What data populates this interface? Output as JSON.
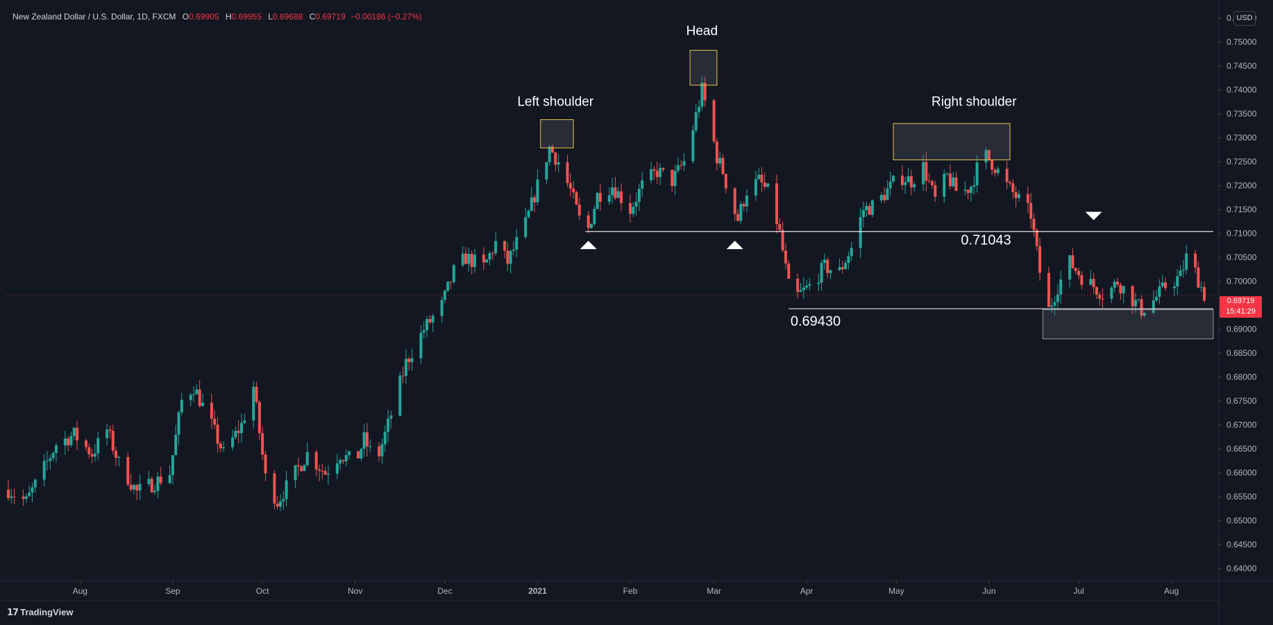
{
  "legend": {
    "symbol": "New Zealand Dollar / U.S. Dollar, 1D, FXCM",
    "open_label": "O",
    "open": "0.69905",
    "high_label": "H",
    "high": "0.69955",
    "low_label": "L",
    "low": "0.69688",
    "close_label": "C",
    "close": "0.69719",
    "change": "−0.00186 (−0.27%)"
  },
  "currency_button": "USD",
  "last_price": {
    "value": "0.69719",
    "countdown": "15:41:29"
  },
  "brand": "TradingView",
  "colors": {
    "background": "#131722",
    "up": "#26a69a",
    "down": "#ef5350",
    "axis_text": "#b2b5be",
    "highlight_border": "#e8c547"
  },
  "chart_data": {
    "type": "candlestick",
    "ylim": [
      0.6375,
      0.7588
    ],
    "y_ticks": [
      "0.75500",
      "0.75000",
      "0.74500",
      "0.74000",
      "0.73500",
      "0.73000",
      "0.72500",
      "0.72000",
      "0.71500",
      "0.71000",
      "0.70500",
      "0.70000",
      "0.69500",
      "0.69000",
      "0.68500",
      "0.68000",
      "0.67500",
      "0.67000",
      "0.66500",
      "0.66000",
      "0.65500",
      "0.65000",
      "0.64500",
      "0.64000"
    ],
    "x_ticks": [
      {
        "label": "Aug",
        "date": "2020-08-01"
      },
      {
        "label": "Sep",
        "date": "2020-09-01"
      },
      {
        "label": "Oct",
        "date": "2020-10-01"
      },
      {
        "label": "Nov",
        "date": "2020-11-01"
      },
      {
        "label": "Dec",
        "date": "2020-12-01"
      },
      {
        "label": "2021",
        "date": "2021-01-01"
      },
      {
        "label": "Feb",
        "date": "2021-02-01"
      },
      {
        "label": "Mar",
        "date": "2021-03-01"
      },
      {
        "label": "Apr",
        "date": "2021-04-01"
      },
      {
        "label": "May",
        "date": "2021-05-01"
      },
      {
        "label": "Jun",
        "date": "2021-06-01"
      },
      {
        "label": "Jul",
        "date": "2021-07-01"
      },
      {
        "label": "Aug",
        "date": "2021-08-01"
      }
    ],
    "date_range": [
      "2020-07-08",
      "2021-08-12"
    ],
    "close_path": [
      {
        "date": "2020-07-08",
        "close": 0.6565
      },
      {
        "date": "2020-07-14",
        "close": 0.654
      },
      {
        "date": "2020-07-20",
        "close": 0.661
      },
      {
        "date": "2020-07-24",
        "close": 0.666
      },
      {
        "date": "2020-07-30",
        "close": 0.668
      },
      {
        "date": "2020-08-05",
        "close": 0.664
      },
      {
        "date": "2020-08-10",
        "close": 0.669
      },
      {
        "date": "2020-08-14",
        "close": 0.662
      },
      {
        "date": "2020-08-20",
        "close": 0.656
      },
      {
        "date": "2020-08-26",
        "close": 0.658
      },
      {
        "date": "2020-08-31",
        "close": 0.66
      },
      {
        "date": "2020-09-04",
        "close": 0.675
      },
      {
        "date": "2020-09-08",
        "close": 0.678
      },
      {
        "date": "2020-09-14",
        "close": 0.67
      },
      {
        "date": "2020-09-18",
        "close": 0.664
      },
      {
        "date": "2020-09-24",
        "close": 0.67
      },
      {
        "date": "2020-09-28",
        "close": 0.678
      },
      {
        "date": "2020-10-02",
        "close": 0.659
      },
      {
        "date": "2020-10-06",
        "close": 0.654
      },
      {
        "date": "2020-10-12",
        "close": 0.66
      },
      {
        "date": "2020-10-16",
        "close": 0.664
      },
      {
        "date": "2020-10-22",
        "close": 0.66
      },
      {
        "date": "2020-10-27",
        "close": 0.664
      },
      {
        "date": "2020-11-01",
        "close": 0.662
      },
      {
        "date": "2020-11-04",
        "close": 0.667
      },
      {
        "date": "2020-11-08",
        "close": 0.662
      },
      {
        "date": "2020-11-12",
        "close": 0.67
      },
      {
        "date": "2020-11-18",
        "close": 0.683
      },
      {
        "date": "2020-11-24",
        "close": 0.69
      },
      {
        "date": "2020-11-30",
        "close": 0.695
      },
      {
        "date": "2020-12-04",
        "close": 0.702
      },
      {
        "date": "2020-12-08",
        "close": 0.705
      },
      {
        "date": "2020-12-14",
        "close": 0.703
      },
      {
        "date": "2020-12-18",
        "close": 0.708
      },
      {
        "date": "2020-12-22",
        "close": 0.704
      },
      {
        "date": "2020-12-28",
        "close": 0.712
      },
      {
        "date": "2021-01-01",
        "close": 0.72
      },
      {
        "date": "2021-01-05",
        "close": 0.728
      },
      {
        "date": "2021-01-08",
        "close": 0.725
      },
      {
        "date": "2021-01-12",
        "close": 0.719
      },
      {
        "date": "2021-01-15",
        "close": 0.713
      },
      {
        "date": "2021-01-18",
        "close": 0.711
      },
      {
        "date": "2021-01-21",
        "close": 0.718
      },
      {
        "date": "2021-01-26",
        "close": 0.72
      },
      {
        "date": "2021-02-01",
        "close": 0.715
      },
      {
        "date": "2021-02-05",
        "close": 0.72
      },
      {
        "date": "2021-02-10",
        "close": 0.723
      },
      {
        "date": "2021-02-15",
        "close": 0.721
      },
      {
        "date": "2021-02-19",
        "close": 0.725
      },
      {
        "date": "2021-02-22",
        "close": 0.732
      },
      {
        "date": "2021-02-25",
        "close": 0.74
      },
      {
        "date": "2021-02-27",
        "close": 0.735
      },
      {
        "date": "2021-03-02",
        "close": 0.726
      },
      {
        "date": "2021-03-04",
        "close": 0.723
      },
      {
        "date": "2021-03-07",
        "close": 0.716
      },
      {
        "date": "2021-03-09",
        "close": 0.713
      },
      {
        "date": "2021-03-12",
        "close": 0.719
      },
      {
        "date": "2021-03-16",
        "close": 0.721
      },
      {
        "date": "2021-03-20",
        "close": 0.718
      },
      {
        "date": "2021-03-23",
        "close": 0.71
      },
      {
        "date": "2021-03-26",
        "close": 0.699
      },
      {
        "date": "2021-03-29",
        "close": 0.697
      },
      {
        "date": "2021-04-02",
        "close": 0.699
      },
      {
        "date": "2021-04-07",
        "close": 0.703
      },
      {
        "date": "2021-04-12",
        "close": 0.702
      },
      {
        "date": "2021-04-16",
        "close": 0.707
      },
      {
        "date": "2021-04-20",
        "close": 0.715
      },
      {
        "date": "2021-04-24",
        "close": 0.716
      },
      {
        "date": "2021-04-28",
        "close": 0.719
      },
      {
        "date": "2021-05-02",
        "close": 0.722
      },
      {
        "date": "2021-05-06",
        "close": 0.721
      },
      {
        "date": "2021-05-10",
        "close": 0.724
      },
      {
        "date": "2021-05-14",
        "close": 0.717
      },
      {
        "date": "2021-05-18",
        "close": 0.722
      },
      {
        "date": "2021-05-22",
        "close": 0.718
      },
      {
        "date": "2021-05-26",
        "close": 0.72
      },
      {
        "date": "2021-05-30",
        "close": 0.727
      },
      {
        "date": "2021-06-03",
        "close": 0.724
      },
      {
        "date": "2021-06-07",
        "close": 0.72
      },
      {
        "date": "2021-06-11",
        "close": 0.717
      },
      {
        "date": "2021-06-15",
        "close": 0.714
      },
      {
        "date": "2021-06-18",
        "close": 0.702
      },
      {
        "date": "2021-06-21",
        "close": 0.694
      },
      {
        "date": "2021-06-24",
        "close": 0.699
      },
      {
        "date": "2021-06-28",
        "close": 0.704
      },
      {
        "date": "2021-07-02",
        "close": 0.701
      },
      {
        "date": "2021-07-06",
        "close": 0.699
      },
      {
        "date": "2021-07-10",
        "close": 0.697
      },
      {
        "date": "2021-07-14",
        "close": 0.7
      },
      {
        "date": "2021-07-18",
        "close": 0.697
      },
      {
        "date": "2021-07-22",
        "close": 0.694
      },
      {
        "date": "2021-07-26",
        "close": 0.696
      },
      {
        "date": "2021-07-30",
        "close": 0.699
      },
      {
        "date": "2021-08-04",
        "close": 0.701
      },
      {
        "date": "2021-08-06",
        "close": 0.705
      },
      {
        "date": "2021-08-09",
        "close": 0.702
      },
      {
        "date": "2021-08-12",
        "close": 0.69719
      }
    ],
    "annotations": {
      "labels": [
        {
          "text": "Left shoulder",
          "date": "2021-01-07",
          "price": 0.7367
        },
        {
          "text": "Head",
          "date": "2021-02-25",
          "price": 0.7515
        },
        {
          "text": "Right shoulder",
          "date": "2021-05-27",
          "price": 0.7367
        }
      ],
      "boxes": [
        {
          "name": "left-shoulder-box",
          "date_from": "2021-01-02",
          "date_to": "2021-01-13",
          "price_from": 0.7279,
          "price_to": 0.7338,
          "style": "highlight"
        },
        {
          "name": "head-box",
          "date_from": "2021-02-21",
          "date_to": "2021-03-02",
          "price_from": 0.741,
          "price_to": 0.7483,
          "style": "highlight"
        },
        {
          "name": "right-shoulder-box",
          "date_from": "2021-04-30",
          "date_to": "2021-06-08",
          "price_from": 0.7254,
          "price_to": 0.733,
          "style": "highlight"
        },
        {
          "name": "support-zone-box",
          "date_from": "2021-06-19",
          "date_to": "2021-08-15",
          "price_from": 0.688,
          "price_to": 0.6941,
          "style": "plain"
        }
      ],
      "levels": [
        {
          "name": "neckline",
          "value": "0.71043",
          "price": 0.71043,
          "date_from": "2021-01-17",
          "date_to": "2021-08-15",
          "label_date": "2021-05-31",
          "label_price": 0.7089
        },
        {
          "name": "support",
          "value": "0.69430",
          "price": 0.6943,
          "date_from": "2021-03-26",
          "date_to": "2021-08-15",
          "label_date": "2021-04-04",
          "label_price": 0.6919
        }
      ],
      "arrows": [
        {
          "direction": "up",
          "date": "2021-01-18",
          "price": 0.7085
        },
        {
          "direction": "up",
          "date": "2021-03-08",
          "price": 0.7085
        },
        {
          "direction": "down",
          "date": "2021-07-06",
          "price": 0.7128
        }
      ]
    }
  }
}
